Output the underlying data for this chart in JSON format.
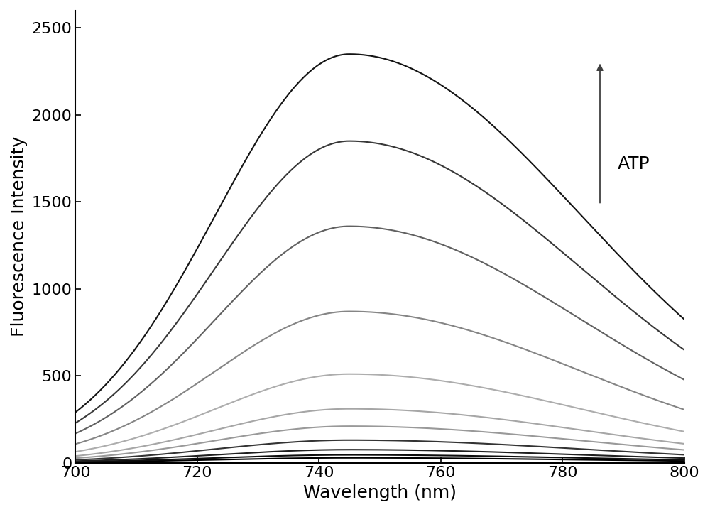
{
  "x_start": 700,
  "x_end": 800,
  "peak_wavelength": 745,
  "ylim": [
    0,
    2600
  ],
  "xlim": [
    700,
    800
  ],
  "yticks": [
    0,
    500,
    1000,
    1500,
    2000,
    2500
  ],
  "xticks": [
    700,
    720,
    740,
    760,
    780,
    800
  ],
  "xlabel": "Wavelength (nm)",
  "ylabel": "Fluorescence Intensity",
  "curves": [
    {
      "peak": 28,
      "sigma_l": 22,
      "sigma_r": 38,
      "gray": 0.0
    },
    {
      "peak": 45,
      "sigma_l": 22,
      "sigma_r": 38,
      "gray": 0.05
    },
    {
      "peak": 75,
      "sigma_l": 22,
      "sigma_r": 38,
      "gray": 0.12
    },
    {
      "peak": 130,
      "sigma_l": 22,
      "sigma_r": 38,
      "gray": 0.2
    },
    {
      "peak": 210,
      "sigma_l": 22,
      "sigma_r": 38,
      "gray": 0.6
    },
    {
      "peak": 310,
      "sigma_l": 22,
      "sigma_r": 38,
      "gray": 0.65
    },
    {
      "peak": 510,
      "sigma_l": 22,
      "sigma_r": 38,
      "gray": 0.68
    },
    {
      "peak": 870,
      "sigma_l": 22,
      "sigma_r": 38,
      "gray": 0.52
    },
    {
      "peak": 1360,
      "sigma_l": 22,
      "sigma_r": 38,
      "gray": 0.38
    },
    {
      "peak": 1850,
      "sigma_l": 22,
      "sigma_r": 38,
      "gray": 0.22
    },
    {
      "peak": 2350,
      "sigma_l": 22,
      "sigma_r": 38,
      "gray": 0.08
    }
  ],
  "background_color": "#ffffff",
  "spine_color": "#000000",
  "label_fontsize": 18,
  "tick_fontsize": 16,
  "atp_fontsize": 18,
  "linewidth": 1.5
}
